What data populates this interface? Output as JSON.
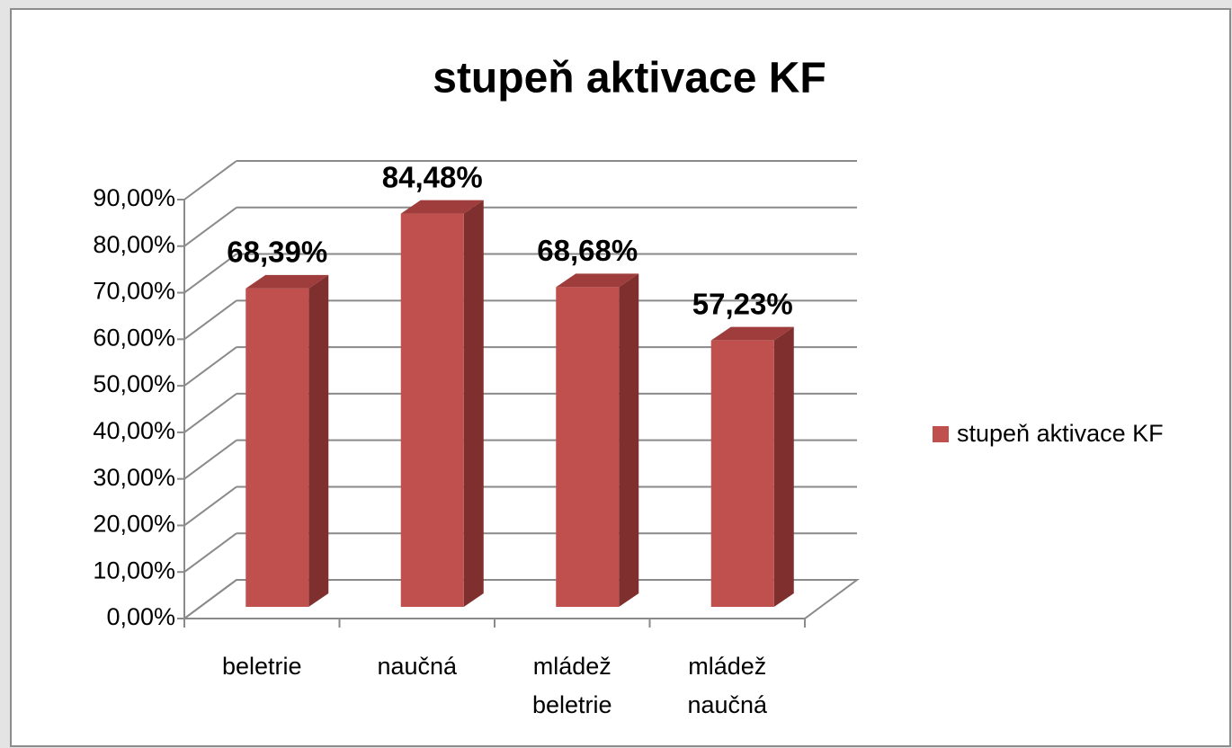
{
  "chart_data": {
    "type": "bar3d",
    "title": "stupeň aktivace KF",
    "categories": [
      "beletrie",
      "naučná",
      "mládež beletrie",
      "mládež naučná"
    ],
    "series": [
      {
        "name": "stupeň aktivace KF",
        "color": "#c0504d",
        "values": [
          68.39,
          84.48,
          68.68,
          57.23
        ],
        "value_labels": [
          "68,39%",
          "84,48%",
          "68,68%",
          "57,23%"
        ]
      }
    ],
    "ylim": [
      0,
      90
    ],
    "yticks": [
      {
        "value": 0,
        "label": "0,00%"
      },
      {
        "value": 10,
        "label": "10,00%"
      },
      {
        "value": 20,
        "label": "20,00%"
      },
      {
        "value": 30,
        "label": "30,00%"
      },
      {
        "value": 40,
        "label": "40,00%"
      },
      {
        "value": 50,
        "label": "50,00%"
      },
      {
        "value": 60,
        "label": "60,00%"
      },
      {
        "value": 70,
        "label": "70,00%"
      },
      {
        "value": 80,
        "label": "80,00%"
      },
      {
        "value": 90,
        "label": "90,00%"
      }
    ],
    "grid": true,
    "legend": "right"
  }
}
